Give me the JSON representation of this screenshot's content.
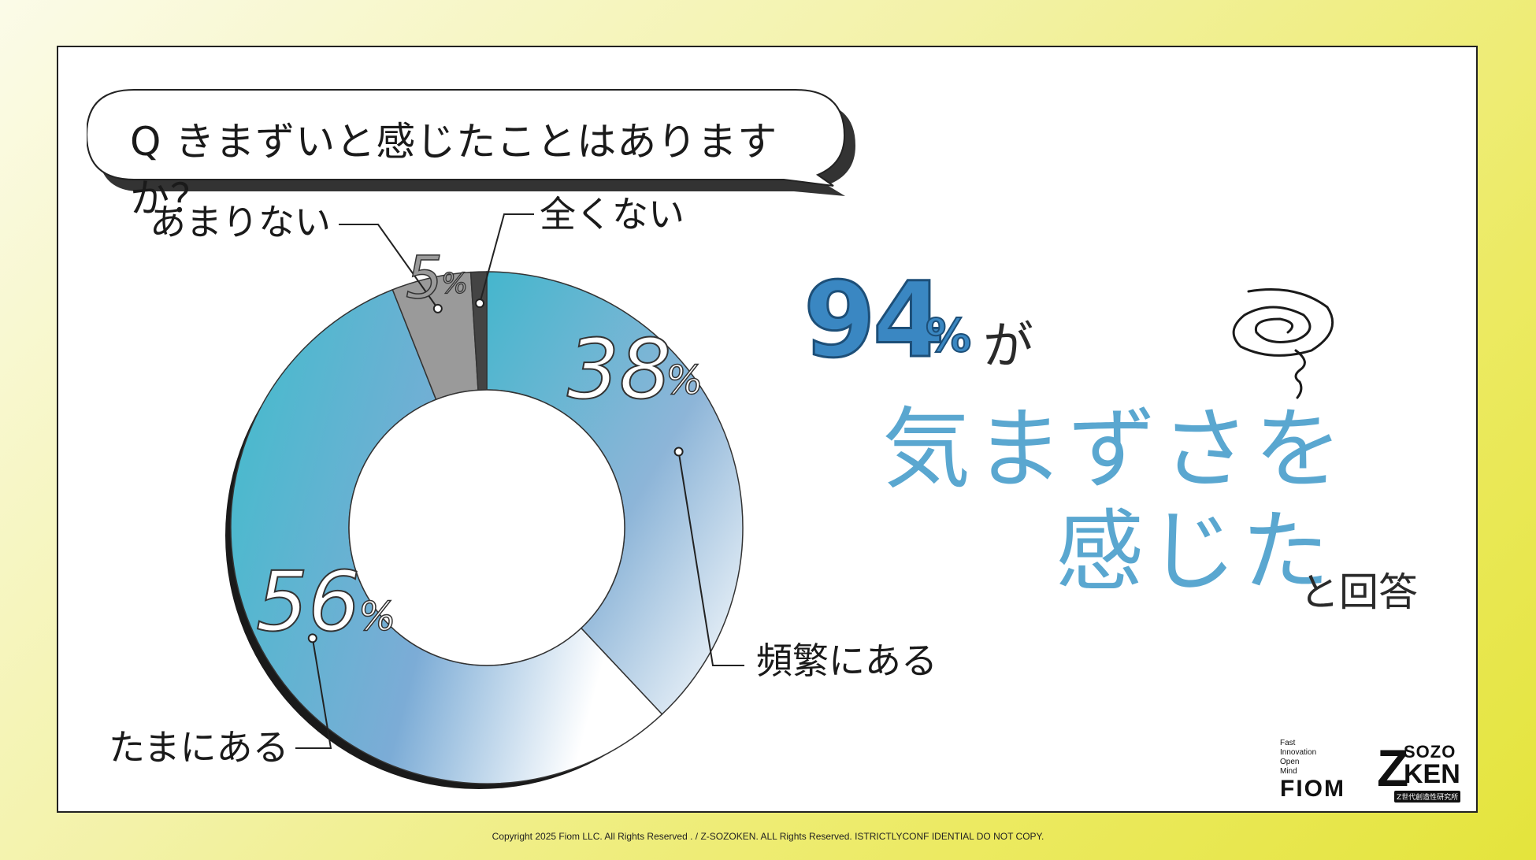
{
  "question": "Q きまずいと感じたことはありますか？",
  "chart_data": {
    "type": "pie",
    "categories": [
      "頻繁にある",
      "たまにある",
      "あまりない",
      "全くない"
    ],
    "values": [
      38,
      56,
      5,
      1
    ],
    "labels": [
      "頻繁にある",
      "たまにある",
      "あまりない",
      "全くない"
    ],
    "value_labels": [
      "38%",
      "56%",
      "5%",
      ""
    ]
  },
  "headline": {
    "number": "94",
    "percent": "%",
    "particle": "が",
    "line1": "気まずさを",
    "line2": "感じた",
    "tail": "と回答"
  },
  "logos": {
    "fiom_tagline": [
      "Fast",
      "Innovation",
      "Open",
      "Mind"
    ],
    "fiom": "FIOM",
    "zsozoken_z": "Z",
    "zsozoken_sozo": "SOZO",
    "zsozoken_ken": "KEN",
    "zsozoken_sub": "Z世代創造性研究所"
  },
  "copyright": "Copyright 2025 Fiom LLC. All Rights Reserved . / Z-SOZOKEN. ALL Rights Reserved. ISTRICTLYCONF IDENTIAL DO NOT COPY.",
  "colors": {
    "accent_blue": "#3a87c2",
    "light_blue": "#5aa7d0",
    "donut_teal": "#46b8cc",
    "gray_slice": "#9a9a9a",
    "dark_slice": "#444444"
  }
}
